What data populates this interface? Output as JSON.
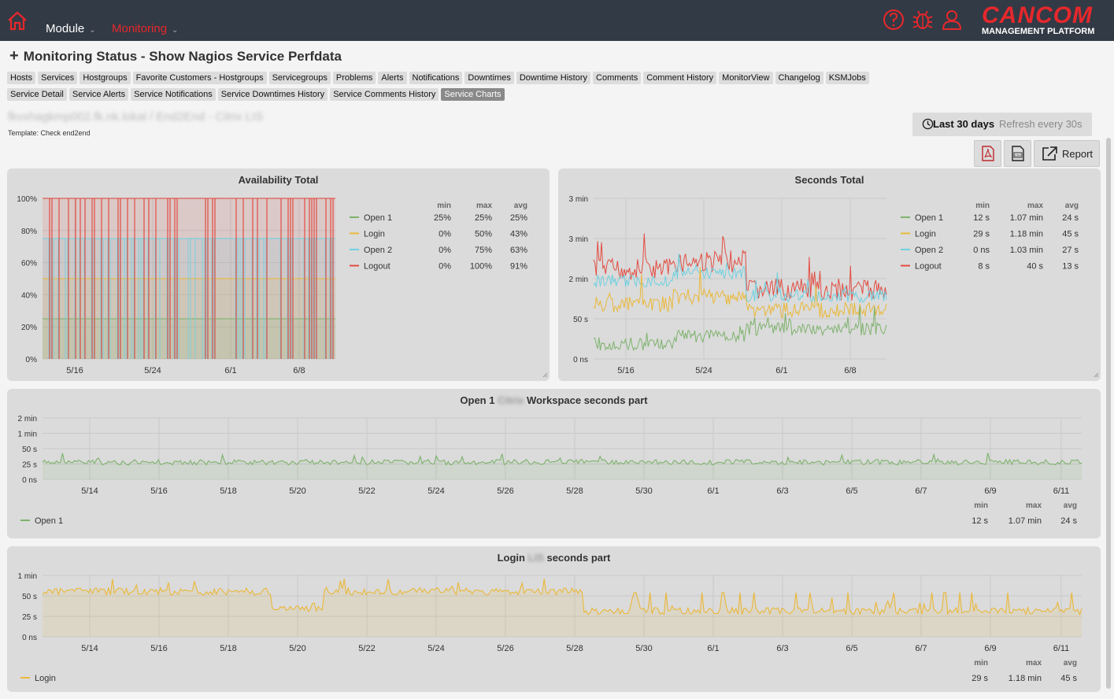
{
  "nav": {
    "module": "Module",
    "monitoring": "Monitoring"
  },
  "logo": {
    "brand": "CANCOM",
    "tagline": "MANAGEMENT PLATFORM"
  },
  "page_title": "Monitoring Status - Show Nagios Service Perfdata",
  "tabs_row1": [
    "Hosts",
    "Services",
    "Hostgroups",
    "Favorite Customers - Hostgroups",
    "Servicegroups",
    "Problems",
    "Alerts",
    "Notifications",
    "Downtimes",
    "Downtime History",
    "Comments",
    "Comment History",
    "MonitorView",
    "Changelog",
    "KSMJobs"
  ],
  "tabs_row2": [
    "Service Detail",
    "Service Alerts",
    "Service Notifications",
    "Service Downtimes History",
    "Service Comments History",
    "Service Charts"
  ],
  "selected_tab": "Service Charts",
  "host": {
    "name": "fkvxhagkmp002.fk.nk.lokal / End2End - Citrix LIS",
    "template": "Template: Check end2end"
  },
  "time": {
    "range": "Last 30 days",
    "refresh": "Refresh every 30s"
  },
  "buttons": {
    "report": "Report",
    "pdf_icon": "pdf-icon",
    "csv_icon": "csv-icon"
  },
  "colors": {
    "green": "#7eb26d",
    "yellow": "#eab839",
    "cyan": "#6ed0e0",
    "red": "#e24d42",
    "brand": "#e5282c"
  },
  "legend_headers": {
    "min": "min",
    "max": "max",
    "avg": "avg"
  },
  "panel_availability": {
    "title": "Availability Total",
    "legend": [
      {
        "name": "Open 1",
        "min": "25%",
        "max": "25%",
        "avg": "25%"
      },
      {
        "name": "Login",
        "min": "0%",
        "max": "50%",
        "avg": "43%"
      },
      {
        "name": "Open 2",
        "min": "0%",
        "max": "75%",
        "avg": "63%"
      },
      {
        "name": "Logout",
        "min": "0%",
        "max": "100%",
        "avg": "91%"
      }
    ]
  },
  "panel_seconds": {
    "title": "Seconds Total",
    "legend": [
      {
        "name": "Open 1",
        "min": "12 s",
        "max": "1.07 min",
        "avg": "24 s"
      },
      {
        "name": "Login",
        "min": "29 s",
        "max": "1.18 min",
        "avg": "45 s"
      },
      {
        "name": "Open 2",
        "min": "0 ns",
        "max": "1.03 min",
        "avg": "27 s"
      },
      {
        "name": "Logout",
        "min": "8 s",
        "max": "40 s",
        "avg": "13 s"
      }
    ]
  },
  "panel_open1": {
    "title_a": "Open 1",
    "title_blur": "Citrix",
    "title_b": "Workspace seconds part",
    "legend": {
      "name": "Open 1",
      "min": "12 s",
      "max": "1.07 min",
      "avg": "24 s"
    }
  },
  "panel_login": {
    "title_a": "Login",
    "title_blur": "LIS",
    "title_b": "seconds part",
    "legend": {
      "name": "Login",
      "min": "29 s",
      "max": "1.18 min",
      "avg": "45 s"
    }
  },
  "chart_data": [
    {
      "type": "area",
      "title": "Availability Total",
      "x_ticks": [
        "5/16",
        "5/24",
        "6/1",
        "6/8"
      ],
      "y_ticks": [
        "0%",
        "20%",
        "40%",
        "60%",
        "80%",
        "100%"
      ],
      "ylim": [
        0,
        100
      ],
      "series": [
        {
          "name": "Open 1",
          "typical": 25,
          "min": 25,
          "max": 25,
          "avg": 25
        },
        {
          "name": "Login",
          "typical": 50,
          "min": 0,
          "max": 50,
          "avg": 43
        },
        {
          "name": "Open 2",
          "typical": 75,
          "min": 0,
          "max": 75,
          "avg": 63
        },
        {
          "name": "Logout",
          "typical": 100,
          "min": 0,
          "max": 100,
          "avg": 91
        }
      ],
      "legend": "right"
    },
    {
      "type": "line",
      "title": "Seconds Total",
      "x_ticks": [
        "5/16",
        "5/24",
        "6/1",
        "6/8"
      ],
      "y_ticks": [
        "0 ns",
        "50 s",
        "2 min",
        "3 min",
        "3 min"
      ],
      "series": [
        {
          "name": "Open 1",
          "min": "12 s",
          "max": "1.07 min",
          "avg": "24 s"
        },
        {
          "name": "Login",
          "min": "29 s",
          "max": "1.18 min",
          "avg": "45 s"
        },
        {
          "name": "Open 2",
          "min": "0 ns",
          "max": "1.03 min",
          "avg": "27 s"
        },
        {
          "name": "Logout",
          "min": "8 s",
          "max": "40 s",
          "avg": "13 s"
        }
      ],
      "legend": "right"
    },
    {
      "type": "line",
      "title": "Open 1 Workspace seconds part",
      "x_ticks": [
        "5/14",
        "5/16",
        "5/18",
        "5/20",
        "5/22",
        "5/24",
        "5/26",
        "5/28",
        "5/30",
        "6/1",
        "6/3",
        "6/5",
        "6/7",
        "6/9",
        "6/11"
      ],
      "y_ticks": [
        "0 ns",
        "25 s",
        "50 s",
        "1 min",
        "2 min"
      ],
      "series": [
        {
          "name": "Open 1",
          "avg_seconds": 24,
          "max_seconds": 64
        }
      ],
      "legend": "bottom"
    },
    {
      "type": "line",
      "title": "Login seconds part",
      "x_ticks": [
        "5/14",
        "5/16",
        "5/18",
        "5/20",
        "5/22",
        "5/24",
        "5/26",
        "5/28",
        "5/30",
        "6/1",
        "6/3",
        "6/5",
        "6/7",
        "6/9",
        "6/11"
      ],
      "y_ticks": [
        "0 ns",
        "25 s",
        "50 s",
        "1 min"
      ],
      "series": [
        {
          "name": "Login",
          "avg_seconds": 45,
          "max_seconds": 71
        }
      ],
      "legend": "bottom"
    }
  ]
}
